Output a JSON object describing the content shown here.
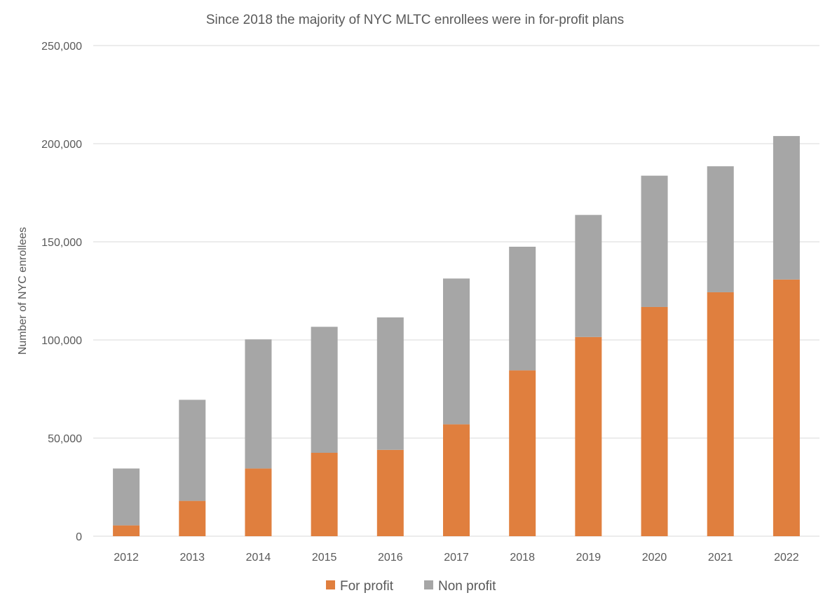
{
  "chart_data": {
    "type": "bar",
    "stacked": true,
    "title": "Since 2018 the majority of NYC MLTC enrollees were in for-profit plans",
    "xlabel": "",
    "ylabel": "Number of NYC enrollees",
    "ylim": [
      0,
      250000
    ],
    "yticks": [
      0,
      50000,
      100000,
      150000,
      200000,
      250000
    ],
    "ytick_labels": [
      "0",
      "50,000",
      "100,000",
      "150,000",
      "200,000",
      "250,000"
    ],
    "grid": true,
    "legend_position": "bottom",
    "categories": [
      "2012",
      "2013",
      "2014",
      "2015",
      "2016",
      "2017",
      "2018",
      "2019",
      "2020",
      "2021",
      "2022"
    ],
    "series": [
      {
        "name": "For profit",
        "color": "#e07f3e",
        "values": [
          5500,
          18000,
          34500,
          42500,
          44000,
          57000,
          84500,
          101500,
          116800,
          124300,
          130800
        ]
      },
      {
        "name": "Non profit",
        "color": "#a6a6a6",
        "values": [
          29000,
          51500,
          65800,
          64200,
          67500,
          74300,
          63000,
          62200,
          66900,
          64200,
          73100
        ]
      }
    ]
  }
}
